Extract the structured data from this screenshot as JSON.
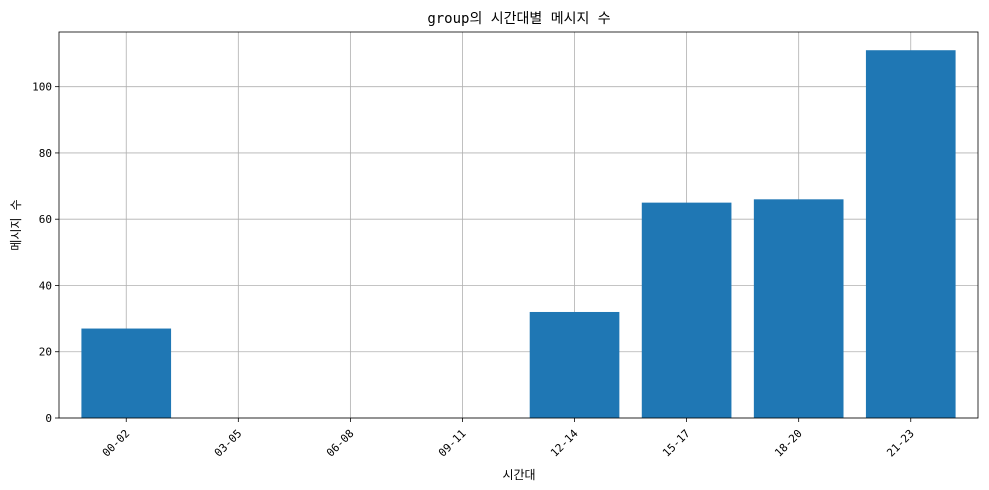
{
  "chart_data": {
    "type": "bar",
    "title": "group의 시간대별 메시지 수",
    "xlabel": "시간대",
    "ylabel": "메시지 수",
    "categories": [
      "00-02",
      "03-05",
      "06-08",
      "09-11",
      "12-14",
      "15-17",
      "18-20",
      "21-23"
    ],
    "values": [
      27,
      0,
      0,
      0,
      32,
      65,
      66,
      111
    ],
    "ylim": [
      0,
      116.5
    ],
    "yticks": [
      0,
      20,
      40,
      60,
      80,
      100
    ],
    "grid": true,
    "bar_color": "#1f77b4"
  }
}
